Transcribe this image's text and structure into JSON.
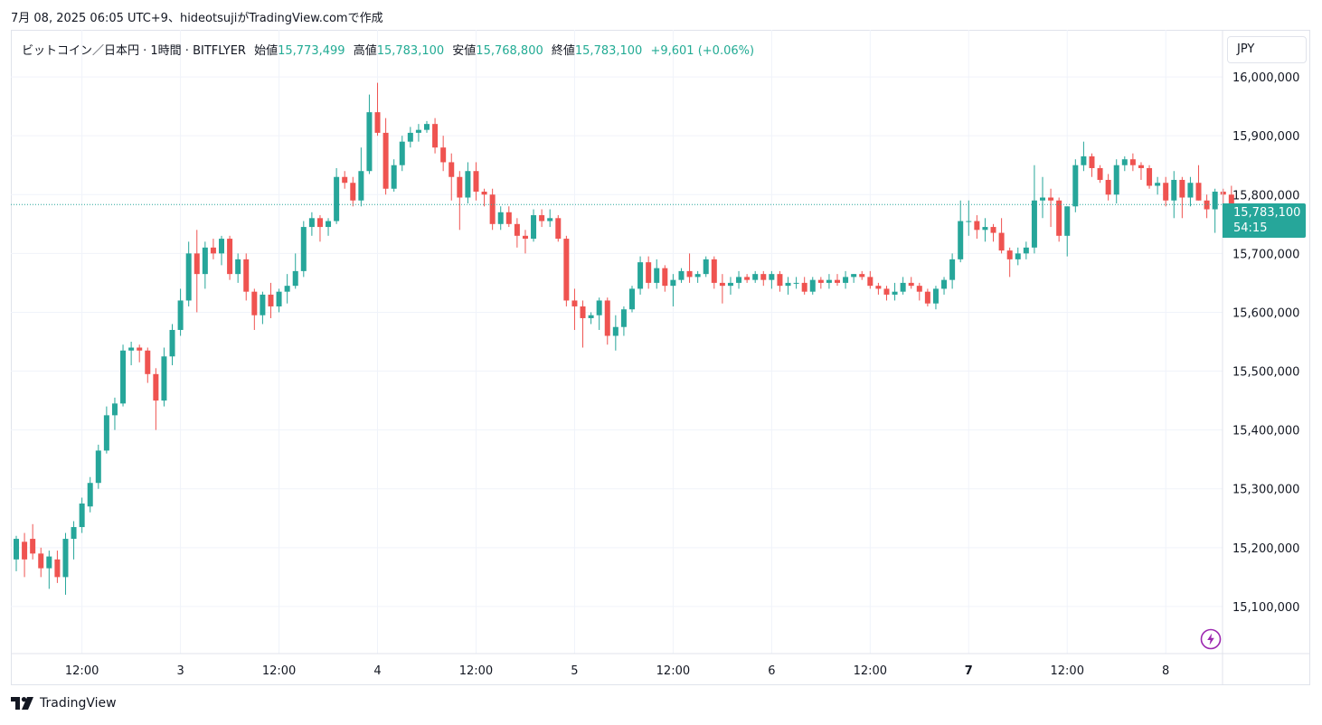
{
  "caption": "7月 08, 2025 06:05 UTC+9、hideotsujiがTradingView.comで作成",
  "legend": {
    "symbol": "ビットコイン／日本円 · 1時間 · BITFLYER",
    "open_label": "始値",
    "open": "15,773,499",
    "high_label": "高値",
    "high": "15,783,100",
    "low_label": "安値",
    "low": "15,768,800",
    "close_label": "終値",
    "close": "15,783,100",
    "change": "+9,601 (+0.06%)"
  },
  "currency": "JPY",
  "price_tag": {
    "price": "15,783,100",
    "countdown": "54:15"
  },
  "footer": {
    "brand": "TradingView"
  },
  "icons": {
    "logo": "tradingview-logo-icon",
    "bolt": "lightning-bolt-icon"
  },
  "colors": {
    "up": "#26a69a",
    "down": "#ef5350",
    "grid": "#f0f3fa",
    "last_price_line": "#26a69a"
  },
  "chart_data": {
    "type": "candlestick",
    "title": "",
    "timeframe": "1時間",
    "ylim": [
      15020000,
      16080000
    ],
    "y_ticks": [
      15100000,
      15200000,
      15300000,
      15400000,
      15500000,
      15600000,
      15700000,
      15800000,
      15900000,
      16000000
    ],
    "y_tick_labels": [
      "15,100,000",
      "15,200,000",
      "15,300,000",
      "15,400,000",
      "15,500,000",
      "15,600,000",
      "15,700,000",
      "15,800,000",
      "15,900,000",
      "16,000,000"
    ],
    "x_tick_labels": [
      {
        "label": "12:00",
        "bar": 8
      },
      {
        "label": "3",
        "bar": 20
      },
      {
        "label": "12:00",
        "bar": 32
      },
      {
        "label": "4",
        "bar": 44
      },
      {
        "label": "12:00",
        "bar": 56
      },
      {
        "label": "5",
        "bar": 68
      },
      {
        "label": "12:00",
        "bar": 80
      },
      {
        "label": "6",
        "bar": 92
      },
      {
        "label": "12:00",
        "bar": 104
      },
      {
        "label": "7",
        "bar": 116
      },
      {
        "label": "12:00",
        "bar": 128
      },
      {
        "label": "8",
        "bar": 140
      }
    ],
    "bold_x_ticks": [
      "7"
    ],
    "last_price": 15783100,
    "grid": true,
    "ohlc": [
      [
        15180000,
        15220000,
        15160000,
        15215000
      ],
      [
        15210000,
        15225000,
        15150000,
        15180000
      ],
      [
        15215000,
        15240000,
        15180000,
        15190000
      ],
      [
        15190000,
        15200000,
        15150000,
        15165000
      ],
      [
        15165000,
        15195000,
        15130000,
        15185000
      ],
      [
        15180000,
        15195000,
        15140000,
        15150000
      ],
      [
        15150000,
        15225000,
        15120000,
        15215000
      ],
      [
        15215000,
        15245000,
        15180000,
        15235000
      ],
      [
        15235000,
        15285000,
        15225000,
        15275000
      ],
      [
        15270000,
        15320000,
        15260000,
        15310000
      ],
      [
        15310000,
        15375000,
        15300000,
        15365000
      ],
      [
        15365000,
        15440000,
        15360000,
        15425000
      ],
      [
        15425000,
        15455000,
        15400000,
        15445000
      ],
      [
        15445000,
        15545000,
        15440000,
        15535000
      ],
      [
        15535000,
        15550000,
        15510000,
        15540000
      ],
      [
        15540000,
        15545000,
        15515000,
        15535000
      ],
      [
        15535000,
        15540000,
        15480000,
        15495000
      ],
      [
        15495000,
        15505000,
        15400000,
        15450000
      ],
      [
        15450000,
        15540000,
        15440000,
        15525000
      ],
      [
        15525000,
        15580000,
        15510000,
        15570000
      ],
      [
        15570000,
        15640000,
        15560000,
        15620000
      ],
      [
        15620000,
        15720000,
        15610000,
        15700000
      ],
      [
        15700000,
        15740000,
        15600000,
        15665000
      ],
      [
        15665000,
        15720000,
        15640000,
        15710000
      ],
      [
        15710000,
        15725000,
        15690000,
        15700000
      ],
      [
        15700000,
        15730000,
        15680000,
        15725000
      ],
      [
        15725000,
        15730000,
        15655000,
        15665000
      ],
      [
        15665000,
        15700000,
        15650000,
        15690000
      ],
      [
        15690000,
        15700000,
        15620000,
        15635000
      ],
      [
        15635000,
        15640000,
        15570000,
        15595000
      ],
      [
        15595000,
        15635000,
        15580000,
        15630000
      ],
      [
        15630000,
        15650000,
        15590000,
        15610000
      ],
      [
        15610000,
        15640000,
        15600000,
        15635000
      ],
      [
        15635000,
        15665000,
        15615000,
        15645000
      ],
      [
        15645000,
        15700000,
        15640000,
        15670000
      ],
      [
        15670000,
        15755000,
        15660000,
        15745000
      ],
      [
        15745000,
        15770000,
        15730000,
        15760000
      ],
      [
        15760000,
        15765000,
        15720000,
        15745000
      ],
      [
        15745000,
        15760000,
        15730000,
        15755000
      ],
      [
        15755000,
        15845000,
        15750000,
        15830000
      ],
      [
        15830000,
        15840000,
        15810000,
        15820000
      ],
      [
        15820000,
        15830000,
        15780000,
        15790000
      ],
      [
        15790000,
        15880000,
        15780000,
        15840000
      ],
      [
        15840000,
        15970000,
        15835000,
        15940000
      ],
      [
        15940000,
        15990000,
        15900000,
        15905000
      ],
      [
        15905000,
        15930000,
        15800000,
        15810000
      ],
      [
        15810000,
        15860000,
        15805000,
        15850000
      ],
      [
        15850000,
        15900000,
        15840000,
        15890000
      ],
      [
        15890000,
        15915000,
        15880000,
        15905000
      ],
      [
        15905000,
        15920000,
        15890000,
        15910000
      ],
      [
        15910000,
        15925000,
        15905000,
        15920000
      ],
      [
        15920000,
        15930000,
        15870000,
        15880000
      ],
      [
        15880000,
        15900000,
        15840000,
        15855000
      ],
      [
        15855000,
        15870000,
        15790000,
        15830000
      ],
      [
        15830000,
        15840000,
        15740000,
        15795000
      ],
      [
        15795000,
        15855000,
        15785000,
        15840000
      ],
      [
        15840000,
        15855000,
        15790000,
        15805000
      ],
      [
        15805000,
        15810000,
        15780000,
        15800000
      ],
      [
        15800000,
        15810000,
        15740000,
        15750000
      ],
      [
        15750000,
        15780000,
        15740000,
        15770000
      ],
      [
        15770000,
        15780000,
        15745000,
        15750000
      ],
      [
        15750000,
        15760000,
        15710000,
        15730000
      ],
      [
        15730000,
        15740000,
        15700000,
        15725000
      ],
      [
        15725000,
        15775000,
        15720000,
        15765000
      ],
      [
        15765000,
        15775000,
        15745000,
        15755000
      ],
      [
        15755000,
        15775000,
        15745000,
        15760000
      ],
      [
        15760000,
        15765000,
        15720000,
        15725000
      ],
      [
        15725000,
        15730000,
        15610000,
        15620000
      ],
      [
        15620000,
        15640000,
        15570000,
        15610000
      ],
      [
        15610000,
        15620000,
        15540000,
        15590000
      ],
      [
        15590000,
        15600000,
        15580000,
        15595000
      ],
      [
        15595000,
        15625000,
        15570000,
        15620000
      ],
      [
        15620000,
        15625000,
        15545000,
        15560000
      ],
      [
        15560000,
        15595000,
        15535000,
        15575000
      ],
      [
        15575000,
        15610000,
        15560000,
        15605000
      ],
      [
        15605000,
        15645000,
        15600000,
        15640000
      ],
      [
        15640000,
        15695000,
        15630000,
        15685000
      ],
      [
        15685000,
        15695000,
        15640000,
        15650000
      ],
      [
        15650000,
        15690000,
        15640000,
        15675000
      ],
      [
        15675000,
        15680000,
        15635000,
        15645000
      ],
      [
        15645000,
        15665000,
        15610000,
        15655000
      ],
      [
        15655000,
        15675000,
        15650000,
        15670000
      ],
      [
        15670000,
        15700000,
        15650000,
        15660000
      ],
      [
        15660000,
        15670000,
        15650000,
        15665000
      ],
      [
        15665000,
        15695000,
        15660000,
        15690000
      ],
      [
        15690000,
        15695000,
        15640000,
        15650000
      ],
      [
        15650000,
        15665000,
        15615000,
        15645000
      ],
      [
        15645000,
        15660000,
        15630000,
        15650000
      ],
      [
        15650000,
        15670000,
        15640000,
        15660000
      ],
      [
        15660000,
        15665000,
        15650000,
        15655000
      ],
      [
        15655000,
        15670000,
        15650000,
        15665000
      ],
      [
        15665000,
        15670000,
        15645000,
        15655000
      ],
      [
        15655000,
        15670000,
        15640000,
        15665000
      ],
      [
        15665000,
        15670000,
        15635000,
        15645000
      ],
      [
        15645000,
        15660000,
        15630000,
        15650000
      ],
      [
        15650000,
        15660000,
        15640000,
        15650000
      ],
      [
        15650000,
        15660000,
        15630000,
        15635000
      ],
      [
        15635000,
        15660000,
        15630000,
        15655000
      ],
      [
        15655000,
        15660000,
        15640000,
        15650000
      ],
      [
        15650000,
        15665000,
        15640000,
        15655000
      ],
      [
        15655000,
        15665000,
        15645000,
        15650000
      ],
      [
        15650000,
        15670000,
        15640000,
        15660000
      ],
      [
        15660000,
        15665000,
        15650000,
        15665000
      ],
      [
        15665000,
        15670000,
        15655000,
        15660000
      ],
      [
        15660000,
        15670000,
        15640000,
        15645000
      ],
      [
        15645000,
        15650000,
        15630000,
        15640000
      ],
      [
        15640000,
        15645000,
        15620000,
        15630000
      ],
      [
        15630000,
        15650000,
        15620000,
        15635000
      ],
      [
        15635000,
        15660000,
        15630000,
        15650000
      ],
      [
        15650000,
        15660000,
        15640000,
        15645000
      ],
      [
        15645000,
        15650000,
        15620000,
        15635000
      ],
      [
        15635000,
        15640000,
        15610000,
        15615000
      ],
      [
        15615000,
        15645000,
        15605000,
        15640000
      ],
      [
        15640000,
        15660000,
        15630000,
        15655000
      ],
      [
        15655000,
        15700000,
        15640000,
        15690000
      ],
      [
        15690000,
        15790000,
        15685000,
        15755000
      ],
      [
        15755000,
        15790000,
        15730000,
        15755000
      ],
      [
        15755000,
        15765000,
        15725000,
        15740000
      ],
      [
        15740000,
        15760000,
        15720000,
        15745000
      ],
      [
        15745000,
        15750000,
        15720000,
        15735000
      ],
      [
        15735000,
        15760000,
        15700000,
        15705000
      ],
      [
        15705000,
        15710000,
        15660000,
        15690000
      ],
      [
        15690000,
        15710000,
        15680000,
        15700000
      ],
      [
        15700000,
        15720000,
        15690000,
        15710000
      ],
      [
        15710000,
        15850000,
        15700000,
        15790000
      ],
      [
        15790000,
        15830000,
        15760000,
        15795000
      ],
      [
        15795000,
        15810000,
        15745000,
        15790000
      ],
      [
        15790000,
        15795000,
        15720000,
        15730000
      ],
      [
        15730000,
        15780000,
        15695000,
        15780000
      ],
      [
        15780000,
        15860000,
        15770000,
        15850000
      ],
      [
        15850000,
        15890000,
        15840000,
        15865000
      ],
      [
        15865000,
        15870000,
        15830000,
        15845000
      ],
      [
        15845000,
        15850000,
        15820000,
        15825000
      ],
      [
        15825000,
        15835000,
        15790000,
        15800000
      ],
      [
        15800000,
        15860000,
        15785000,
        15850000
      ],
      [
        15850000,
        15865000,
        15840000,
        15860000
      ],
      [
        15860000,
        15870000,
        15840000,
        15850000
      ],
      [
        15850000,
        15855000,
        15825000,
        15845000
      ],
      [
        15845000,
        15850000,
        15810000,
        15815000
      ],
      [
        15815000,
        15830000,
        15800000,
        15820000
      ],
      [
        15820000,
        15830000,
        15780000,
        15790000
      ],
      [
        15790000,
        15840000,
        15760000,
        15825000
      ],
      [
        15825000,
        15830000,
        15760000,
        15795000
      ],
      [
        15795000,
        15830000,
        15780000,
        15820000
      ],
      [
        15820000,
        15850000,
        15790000,
        15790000
      ],
      [
        15790000,
        15800000,
        15760000,
        15775000
      ],
      [
        15775000,
        15810000,
        15735000,
        15805000
      ],
      [
        15805000,
        15810000,
        15770000,
        15800000
      ],
      [
        15800000,
        15815000,
        15760000,
        15770000
      ],
      [
        15773499,
        15783100,
        15768800,
        15783100
      ]
    ]
  }
}
